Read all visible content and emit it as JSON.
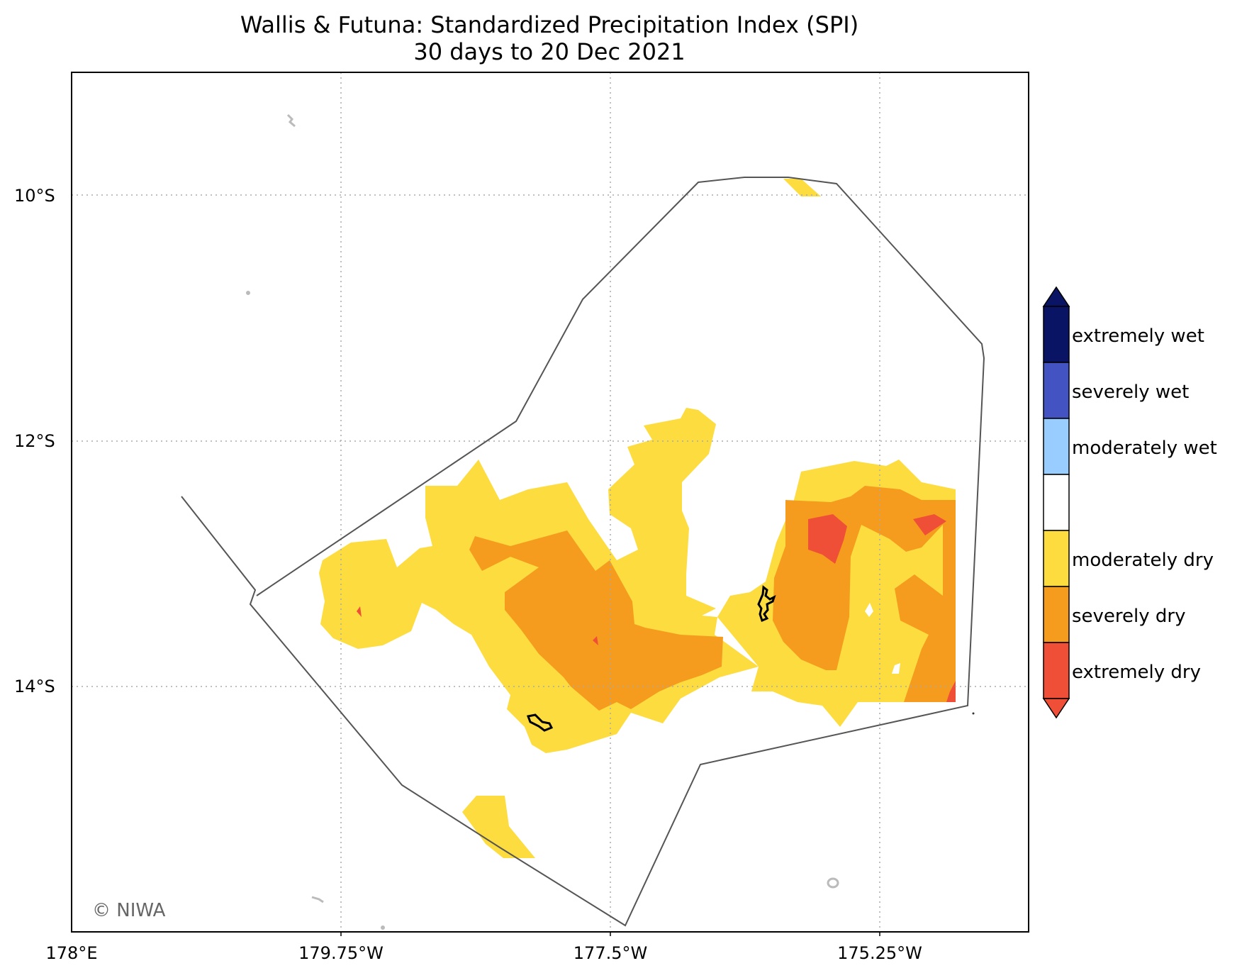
{
  "title": "Wallis & Futuna: Standardized Precipitation Index (SPI)",
  "subtitle": "30 days to 20 Dec 2021",
  "copyright": "© NIWA",
  "lat_ticks": [
    "10°S",
    "12°S",
    "14°S"
  ],
  "lon_ticks": [
    "178°E",
    "179.75°W",
    "177.5°W",
    "175.25°W"
  ],
  "legend": {
    "entries": [
      {
        "label": "extremely wet",
        "color": "#0a1464"
      },
      {
        "label": "severely wet",
        "color": "#4353c2"
      },
      {
        "label": "moderately wet",
        "color": "#99ccff"
      },
      {
        "label": "",
        "color": "#ffffff"
      },
      {
        "label": "moderately dry",
        "color": "#fddc3f"
      },
      {
        "label": "severely dry",
        "color": "#f59c1f"
      },
      {
        "label": "extremely dry",
        "color": "#f04f37"
      }
    ]
  },
  "colors": {
    "moderately_dry": "#fddc3f",
    "severely_dry": "#f59c1f",
    "extremely_dry": "#f04f37",
    "eez_boundary": "#555555",
    "grid": "#aaaaaa"
  }
}
